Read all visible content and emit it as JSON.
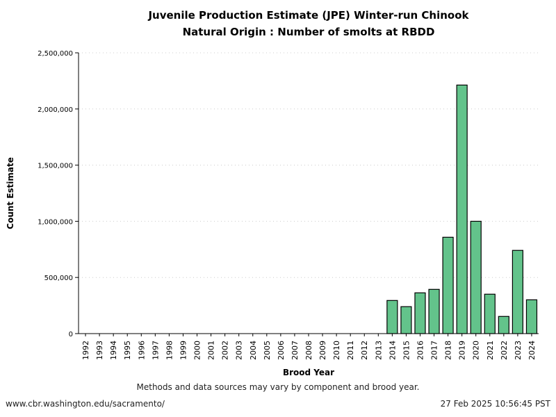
{
  "chart_data": {
    "type": "bar",
    "title": "Juvenile Production Estimate (JPE) Winter-run Chinook",
    "subtitle": "Natural Origin : Number of smolts at RBDD",
    "xlabel": "Brood Year",
    "ylabel": "Count Estimate",
    "ylim": [
      0,
      2500000
    ],
    "yticks": [
      0,
      500000,
      1000000,
      1500000,
      2000000,
      2500000
    ],
    "ytick_labels": [
      "0",
      "500,000",
      "1,000,000",
      "1,500,000",
      "2,000,000",
      "2,500,000"
    ],
    "grid": "horizontal dotted",
    "bar_color": "#63c38b",
    "categories": [
      "1992",
      "1993",
      "1994",
      "1995",
      "1996",
      "1997",
      "1998",
      "1999",
      "2000",
      "2001",
      "2002",
      "2003",
      "2004",
      "2005",
      "2006",
      "2007",
      "2008",
      "2009",
      "2010",
      "2011",
      "2012",
      "2013",
      "2014",
      "2015",
      "2016",
      "2017",
      "2018",
      "2019",
      "2020",
      "2021",
      "2022",
      "2023",
      "2024"
    ],
    "values": [
      null,
      null,
      null,
      null,
      null,
      null,
      null,
      null,
      null,
      null,
      null,
      null,
      null,
      null,
      null,
      null,
      null,
      null,
      null,
      null,
      null,
      null,
      295000,
      240000,
      363000,
      394000,
      858000,
      2213000,
      1000000,
      351000,
      153000,
      741000,
      301000
    ]
  },
  "footer": {
    "note": "Methods and data sources may vary by component and brood year.",
    "url": "www.cbr.washington.edu/sacramento/",
    "timestamp": "27 Feb 2025 10:56:45 PST"
  }
}
